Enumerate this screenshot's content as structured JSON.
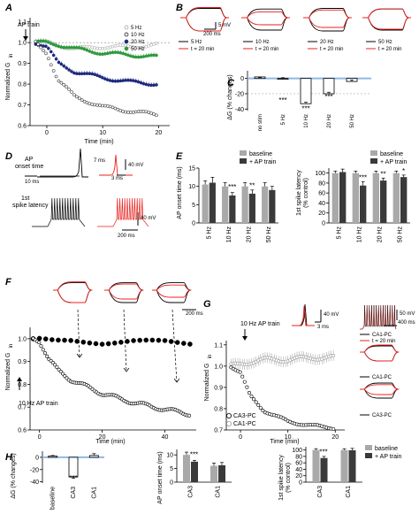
{
  "panels": {
    "A": {
      "label": "A",
      "annotation": "AP train",
      "ylabel": "Normalized G",
      "ylabel_sub": "in",
      "xlabel": "Time (min)",
      "xticks": [
        "0",
        "10",
        "20"
      ],
      "yticks": [
        "0.6",
        "0.7",
        "0.8",
        "0.9",
        "1.0",
        "1.1"
      ],
      "legend": [
        "5 Hz",
        "10 Hz",
        "20 Hz",
        "50 Hz"
      ]
    },
    "B": {
      "label": "B",
      "scale_mv": "5 mV",
      "scale_ms": "200 ms",
      "groups": [
        "5 Hz",
        "10 Hz",
        "20 Hz",
        "50 Hz"
      ],
      "t20": "t = 20 min"
    },
    "C": {
      "label": "C",
      "ylabel": "ΔG (% changes)",
      "yticks": [
        "0",
        "-20",
        "-40"
      ],
      "categories": [
        "no stim",
        "5 Hz",
        "10 Hz",
        "20 Hz",
        "50 Hz"
      ],
      "stars": [
        "***",
        "***",
        "***"
      ]
    },
    "D": {
      "label": "D",
      "onset_label_1": "AP",
      "onset_label_2": "onset time",
      "latency_label_1": "1st",
      "latency_label_2": "spike latency",
      "s1": "10 ms",
      "s2": "7 ms",
      "s3": "40 mV",
      "s4": "3 ms",
      "s5": "40 mV",
      "s6": "200 ms"
    },
    "E": {
      "label": "E",
      "ylabel_left": "AP onset time (ms)",
      "ylabel_right_1": "1st spike latency",
      "ylabel_right_2": "(% control)",
      "left_yticks": [
        "0",
        "5",
        "10",
        "15"
      ],
      "right_yticks": [
        "0",
        "20",
        "40",
        "60",
        "80",
        "100"
      ],
      "categories": [
        "5 Hz",
        "10 Hz",
        "20 Hz",
        "50 Hz"
      ],
      "legend": [
        "baseline",
        "+ AP train"
      ],
      "left_stars": [
        "***",
        "**"
      ],
      "right_stars": [
        "***",
        "**",
        "*"
      ]
    },
    "F": {
      "label": "F",
      "annotation": "10 Hz AP train",
      "ylabel": "Normalized G",
      "ylabel_sub": "in",
      "xlabel": "Time (min)",
      "xticks": [
        "0",
        "20",
        "40"
      ],
      "yticks": [
        "0.6",
        "0.7",
        "0.8",
        "0.9",
        "1.0"
      ],
      "scale_ms": "200 ms"
    },
    "G": {
      "label": "G",
      "annotation": "10 Hz AP train",
      "ylabel": "Normalized G",
      "ylabel_sub": "in",
      "xlabel": "Time (min)",
      "xticks": [
        "0",
        "10",
        "20"
      ],
      "yticks": [
        "0.7",
        "0.8",
        "0.9",
        "1.0",
        "1.1"
      ],
      "legend": [
        "CA3-PC",
        "CA1-PC"
      ],
      "scale_40mv": "40 mV",
      "scale_3ms": "3 ms",
      "scale_50mv": "50 mV",
      "scale_400ms": "400 ms",
      "ca1pc": "CA1-PC",
      "t20": "t = 20 min",
      "ca1pc_b": "CA1-PC",
      "ca3pc": "CA3-PC"
    },
    "H": {
      "label": "H",
      "left_ylabel": "ΔG (% changes)",
      "left_yticks": [
        "0",
        "-20",
        "-40"
      ],
      "left_categories": [
        "baseline",
        "CA3",
        "CA1"
      ],
      "mid_ylabel": "AP onset time (ms)",
      "mid_yticks": [
        "0",
        "5",
        "10"
      ],
      "categories": [
        "CA3",
        "CA1"
      ],
      "right_ylabel_1": "1st spike latency",
      "right_ylabel_2": "(% control)",
      "right_yticks": [
        "0",
        "20",
        "40",
        "60",
        "80",
        "100"
      ],
      "legend": [
        "baseline",
        "+ AP train"
      ],
      "stars": [
        "***",
        "***",
        "***"
      ]
    }
  },
  "colors": {
    "red": "#e8201c",
    "green": "#2e9a3e",
    "navy": "#1f2a80",
    "blue_line": "#8fb8e6",
    "grey_bar": "#a9a9a9",
    "dark_bar": "#3a3a3a",
    "open_marker": "#9a9a9a"
  },
  "chart_data": [
    {
      "panel": "A",
      "type": "scatter",
      "xlim": [
        -3,
        22
      ],
      "ylim": [
        0.6,
        1.12
      ],
      "series": [
        {
          "name": "5 Hz",
          "x": [
            -2,
            0,
            5,
            10,
            15,
            20
          ],
          "y": [
            1.0,
            1.0,
            0.97,
            0.98,
            0.98,
            0.99
          ]
        },
        {
          "name": "10 Hz",
          "x": [
            -2,
            0,
            2,
            5,
            10,
            15,
            20
          ],
          "y": [
            1.0,
            0.95,
            0.82,
            0.74,
            0.69,
            0.67,
            0.65
          ]
        },
        {
          "name": "20 Hz",
          "x": [
            -2,
            0,
            2,
            5,
            10,
            15,
            20
          ],
          "y": [
            1.0,
            0.98,
            0.9,
            0.86,
            0.83,
            0.81,
            0.8
          ]
        },
        {
          "name": "50 Hz",
          "x": [
            -2,
            0,
            2,
            5,
            10,
            15,
            20
          ],
          "y": [
            1.0,
            1.0,
            0.99,
            0.97,
            0.95,
            0.94,
            0.93
          ]
        }
      ]
    },
    {
      "panel": "C",
      "type": "bar",
      "categories": [
        "no stim",
        "5 Hz",
        "10 Hz",
        "20 Hz",
        "50 Hz"
      ],
      "values": [
        2,
        -1,
        -33,
        -20,
        -4
      ],
      "errors": [
        1,
        2,
        2,
        2,
        2
      ],
      "ylim": [
        -42,
        10
      ]
    },
    {
      "panel": "E-left",
      "type": "bar",
      "categories": [
        "5 Hz",
        "10 Hz",
        "20 Hz",
        "50 Hz"
      ],
      "series": [
        {
          "name": "baseline",
          "values": [
            10.5,
            10,
            10,
            10
          ]
        },
        {
          "name": "+ AP train",
          "values": [
            11,
            7.5,
            8,
            9
          ]
        }
      ],
      "errors": [
        [
          1.0,
          1.0,
          1.0,
          1.0
        ],
        [
          1.5,
          0.8,
          1.0,
          1.0
        ]
      ],
      "ylim": [
        0,
        15
      ]
    },
    {
      "panel": "E-right",
      "type": "bar",
      "categories": [
        "5 Hz",
        "10 Hz",
        "20 Hz",
        "50 Hz"
      ],
      "series": [
        {
          "name": "baseline",
          "values": [
            100,
            100,
            100,
            100
          ]
        },
        {
          "name": "+ AP train",
          "values": [
            102,
            75,
            85,
            92
          ]
        }
      ],
      "errors": [
        [
          4,
          4,
          4,
          4
        ],
        [
          6,
          8,
          5,
          4
        ]
      ],
      "ylim": [
        0,
        110
      ]
    },
    {
      "panel": "F",
      "type": "scatter",
      "xlim": [
        -3,
        50
      ],
      "ylim": [
        0.6,
        1.05
      ],
      "series": [
        {
          "x": [
            -2,
            0,
            5,
            10,
            20,
            30,
            40,
            48
          ],
          "y": [
            1.0,
            1.0,
            0.99,
            0.99,
            0.98,
            0.99,
            0.99,
            0.98
          ]
        },
        {
          "x": [
            -2,
            0,
            3,
            6,
            10,
            15,
            20,
            30,
            40,
            48
          ],
          "y": [
            1.0,
            0.99,
            0.91,
            0.86,
            0.82,
            0.79,
            0.76,
            0.72,
            0.69,
            0.67
          ]
        }
      ]
    },
    {
      "panel": "G",
      "type": "scatter",
      "xlim": [
        -3,
        22
      ],
      "ylim": [
        0.7,
        1.12
      ],
      "series": [
        {
          "name": "CA3-PC",
          "x": [
            -2,
            0,
            2,
            5,
            10,
            15,
            20
          ],
          "y": [
            1.0,
            0.97,
            0.86,
            0.79,
            0.74,
            0.72,
            0.71
          ]
        },
        {
          "name": "CA1-PC",
          "x": [
            -2,
            0,
            2,
            5,
            10,
            15,
            20
          ],
          "y": [
            1.0,
            1.01,
            1.02,
            1.03,
            1.03,
            1.04,
            1.04
          ]
        }
      ]
    },
    {
      "panel": "H-left",
      "type": "bar",
      "categories": [
        "baseline",
        "CA3",
        "CA1"
      ],
      "values": [
        2,
        -32,
        3
      ],
      "errors": [
        1,
        2,
        3
      ],
      "ylim": [
        -42,
        10
      ]
    },
    {
      "panel": "H-mid",
      "type": "bar",
      "categories": [
        "CA3",
        "CA1"
      ],
      "series": [
        {
          "name": "baseline",
          "values": [
            10,
            6
          ]
        },
        {
          "name": "+ AP train",
          "values": [
            7.5,
            6.2
          ]
        }
      ],
      "errors": [
        [
          1.0,
          1.0
        ],
        [
          0.5,
          1.0
        ]
      ],
      "ylim": [
        0,
        12
      ]
    },
    {
      "panel": "H-right",
      "type": "bar",
      "categories": [
        "CA3",
        "CA1"
      ],
      "series": [
        {
          "name": "baseline",
          "values": [
            100,
            100
          ]
        },
        {
          "name": "+ AP train",
          "values": [
            75,
            99
          ]
        }
      ],
      "errors": [
        [
          4,
          4
        ],
        [
          5,
          6
        ]
      ],
      "ylim": [
        0,
        110
      ]
    }
  ]
}
